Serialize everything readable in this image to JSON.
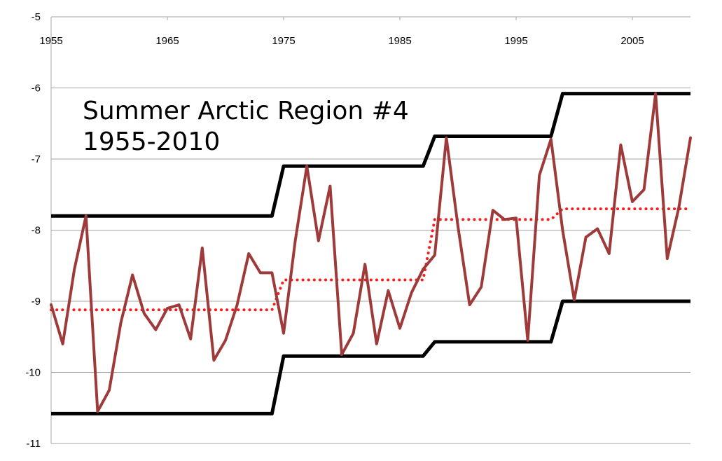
{
  "chart_data": {
    "type": "line",
    "title_lines": [
      "Summer Arctic Region #4",
      "1955-2010"
    ],
    "xlabel": "",
    "ylabel": "",
    "xlim": [
      1955,
      2010
    ],
    "ylim": [
      -11,
      -5
    ],
    "x_ticks": [
      1955,
      1965,
      1975,
      1985,
      1995,
      2005
    ],
    "y_ticks": [
      -5,
      -6,
      -7,
      -8,
      -9,
      -10,
      -11
    ],
    "grid": true,
    "x_axis_position": "top",
    "colors": {
      "observed": "#9e3b3a",
      "mean": "#ff1a1a",
      "bounds": "#000000",
      "grid": "#a6a6a6"
    },
    "series": [
      {
        "key": "observed",
        "style": "solid",
        "x": [
          1955,
          1956,
          1957,
          1958,
          1959,
          1960,
          1961,
          1962,
          1963,
          1964,
          1965,
          1966,
          1967,
          1968,
          1969,
          1970,
          1971,
          1972,
          1973,
          1974,
          1975,
          1976,
          1977,
          1978,
          1979,
          1980,
          1981,
          1982,
          1983,
          1984,
          1985,
          1986,
          1987,
          1988,
          1989,
          1990,
          1991,
          1992,
          1993,
          1994,
          1995,
          1996,
          1997,
          1998,
          1999,
          2000,
          2001,
          2002,
          2003,
          2004,
          2005,
          2006,
          2007,
          2008,
          2009,
          2010
        ],
        "values": [
          -9.05,
          -9.6,
          -8.55,
          -7.8,
          -10.55,
          -10.25,
          -9.3,
          -8.63,
          -9.17,
          -9.4,
          -9.1,
          -9.05,
          -9.53,
          -8.25,
          -9.83,
          -9.55,
          -9.05,
          -8.33,
          -8.6,
          -8.6,
          -9.45,
          -8.15,
          -7.1,
          -8.15,
          -7.38,
          -9.75,
          -9.45,
          -8.48,
          -9.6,
          -8.85,
          -9.38,
          -8.88,
          -8.55,
          -8.35,
          -6.7,
          -7.95,
          -9.05,
          -8.8,
          -7.72,
          -7.85,
          -7.83,
          -9.55,
          -7.23,
          -6.72,
          -8.0,
          -8.98,
          -8.1,
          -7.98,
          -8.33,
          -6.8,
          -7.6,
          -7.43,
          -6.08,
          -8.4,
          -7.68,
          -6.7
        ]
      },
      {
        "key": "mean",
        "style": "dotted",
        "x": [
          1955,
          1974,
          1975,
          1987,
          1988,
          1998,
          1999,
          2010
        ],
        "values": [
          -9.12,
          -9.12,
          -8.7,
          -8.7,
          -7.85,
          -7.85,
          -7.7,
          -7.7
        ]
      },
      {
        "key": "upper",
        "style": "solid",
        "x": [
          1955,
          1974,
          1975,
          1987,
          1988,
          1998,
          1999,
          2010
        ],
        "values": [
          -7.8,
          -7.8,
          -7.1,
          -7.1,
          -6.68,
          -6.68,
          -6.08,
          -6.08
        ]
      },
      {
        "key": "lower",
        "style": "solid",
        "x": [
          1955,
          1974,
          1975,
          1987,
          1988,
          1998,
          1999,
          2010
        ],
        "values": [
          -10.58,
          -10.58,
          -9.77,
          -9.77,
          -9.57,
          -9.57,
          -9.0,
          -9.0
        ]
      }
    ]
  }
}
